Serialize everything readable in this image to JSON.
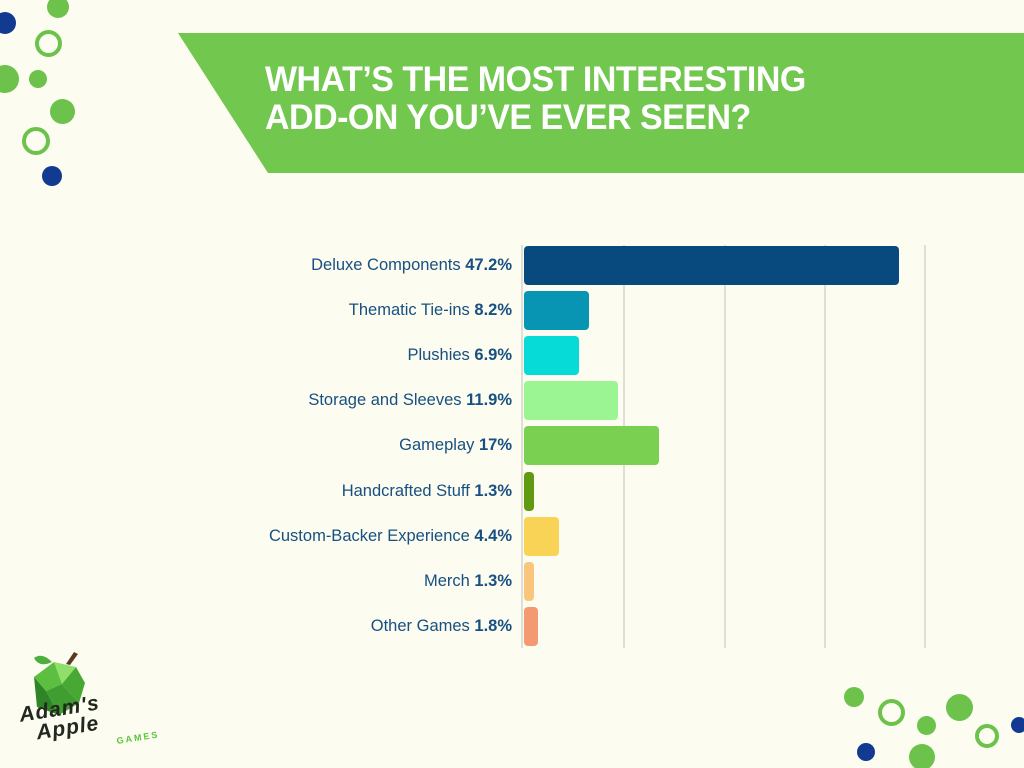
{
  "page": {
    "background_color": "#FCFCF0"
  },
  "banner": {
    "color": "#72C74E",
    "text_color": "#FFFFFF",
    "title_line1": "WHAT’S THE MOST INTERESTING",
    "title_line2": "ADD-ON YOU’VE EVER SEEN?"
  },
  "chart_data": {
    "type": "bar",
    "orientation": "horizontal",
    "title": "WHAT’S THE MOST INTERESTING ADD-ON YOU’VE EVER SEEN?",
    "categories": [
      "Deluxe Components",
      "Thematic Tie-ins",
      "Plushies",
      "Storage and Sleeves",
      "Gameplay",
      "Handcrafted Stuff",
      "Custom-Backer Experience",
      "Merch",
      "Other Games"
    ],
    "values": [
      47.2,
      8.2,
      6.9,
      11.9,
      17,
      1.3,
      4.4,
      1.3,
      1.8
    ],
    "value_labels": [
      "47.2%",
      "8.2%",
      "6.9%",
      "11.9%",
      "17%",
      "1.3%",
      "4.4%",
      "1.3%",
      "1.8%"
    ],
    "bar_colors": [
      "#084A7E",
      "#0895B4",
      "#06DBD7",
      "#9CF593",
      "#79D051",
      "#609A12",
      "#F9D355",
      "#FAC67D",
      "#F49A72"
    ],
    "label_color": "#175081",
    "xlabel": "",
    "ylabel": "",
    "xlim": [
      0,
      50.4
    ],
    "gridline_interval_pct": 12.6,
    "grid_color": "#DEDFD6",
    "legend_position": "none"
  },
  "logo": {
    "name_line1": "Adam's",
    "name_line2": "Apple",
    "name_line3": "GAMES",
    "apple_green": "#4FAF3C",
    "games_green": "#5BC43B"
  },
  "decor": {
    "green": "#6CC24B",
    "navy": "#123A90"
  }
}
